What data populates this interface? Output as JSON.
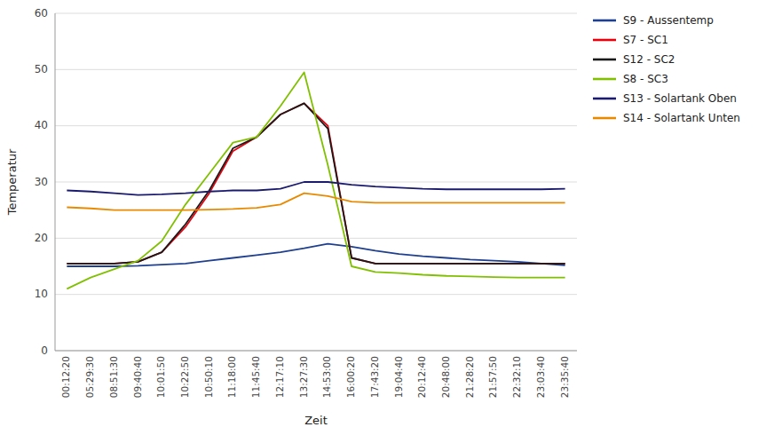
{
  "chart_data": {
    "type": "line",
    "x_label": "Zeit",
    "y_label": "Temperatur",
    "categories": [
      "00:12:20",
      "05:29:30",
      "08:51:30",
      "09:40:40",
      "10:01:50",
      "10:22:50",
      "10:50:10",
      "11:18:00",
      "11:45:40",
      "12:17:10",
      "13:27:30",
      "14:53:00",
      "16:00:20",
      "17:43:20",
      "19:04:40",
      "20:12:40",
      "20:48:00",
      "21:28:20",
      "21:57:50",
      "22:32:10",
      "23:03:40",
      "23:35:40"
    ],
    "series": [
      {
        "name": "S9 - Aussentemp",
        "color": "#1f3f8f",
        "values": [
          15.0,
          15.0,
          15.0,
          15.1,
          15.3,
          15.5,
          16.0,
          16.5,
          17.0,
          17.5,
          18.2,
          19.0,
          18.5,
          17.8,
          17.2,
          16.8,
          16.5,
          16.2,
          16.0,
          15.8,
          15.5,
          15.2
        ]
      },
      {
        "name": "S7 - SC1",
        "color": "#e8000d",
        "values": [
          15.5,
          15.5,
          15.5,
          15.8,
          17.5,
          22.0,
          28.0,
          35.5,
          38.0,
          42.0,
          44.0,
          40.0,
          16.5,
          15.5,
          15.5,
          15.5,
          15.5,
          15.5,
          15.5,
          15.5,
          15.5,
          15.5
        ]
      },
      {
        "name": "S12 - SC2",
        "color": "#1a1a1a",
        "values": [
          15.5,
          15.5,
          15.5,
          15.8,
          17.5,
          22.5,
          28.5,
          36.0,
          38.0,
          42.0,
          44.0,
          39.5,
          16.5,
          15.5,
          15.5,
          15.5,
          15.5,
          15.5,
          15.5,
          15.5,
          15.5,
          15.5
        ]
      },
      {
        "name": "S8 - SC3",
        "color": "#80c000",
        "values": [
          11.0,
          13.0,
          14.5,
          16.0,
          19.5,
          26.0,
          31.5,
          37.0,
          38.0,
          43.5,
          49.5,
          33.0,
          15.0,
          14.0,
          13.8,
          13.5,
          13.3,
          13.2,
          13.1,
          13.0,
          13.0,
          13.0
        ]
      },
      {
        "name": "S13 - Solartank Oben",
        "color": "#1a1a6e",
        "values": [
          28.5,
          28.3,
          28.0,
          27.7,
          27.8,
          28.0,
          28.3,
          28.5,
          28.5,
          28.8,
          30.0,
          30.0,
          29.5,
          29.2,
          29.0,
          28.8,
          28.7,
          28.7,
          28.7,
          28.7,
          28.7,
          28.8
        ]
      },
      {
        "name": "S14 - Solartank Unten",
        "color": "#e88a00",
        "values": [
          25.5,
          25.3,
          25.0,
          25.0,
          25.0,
          25.0,
          25.1,
          25.2,
          25.4,
          26.0,
          28.0,
          27.5,
          26.5,
          26.3,
          26.3,
          26.3,
          26.3,
          26.3,
          26.3,
          26.3,
          26.3,
          26.3
        ]
      }
    ],
    "ylim": [
      0,
      60
    ],
    "yticks": [
      0,
      10,
      20,
      30,
      40,
      50,
      60
    ],
    "grid": true,
    "legend": "right"
  }
}
